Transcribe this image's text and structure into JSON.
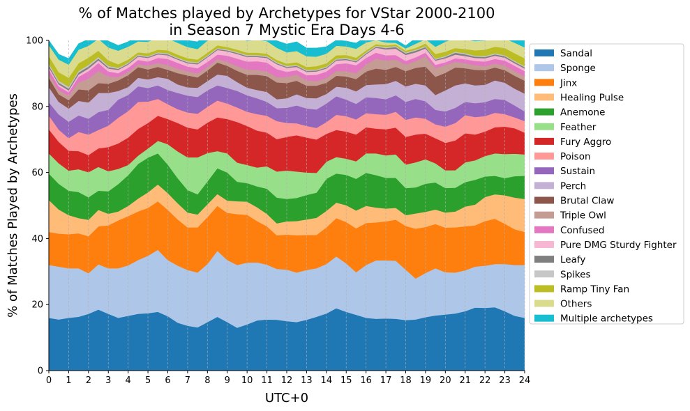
{
  "chart_data": {
    "type": "area",
    "stacked": true,
    "title_line1": "% of Matches played by Archetypes for VStar 2000-2100",
    "title_line2": "in Season 7 Mystic Era Days 4-6",
    "xlabel": "UTC+0",
    "ylabel": "% of Matches Played by Archetypes",
    "xlim": [
      0,
      24
    ],
    "ylim": [
      0,
      100
    ],
    "x_ticks": [
      0,
      1,
      2,
      3,
      4,
      5,
      6,
      7,
      8,
      9,
      10,
      11,
      12,
      13,
      14,
      15,
      16,
      17,
      18,
      19,
      20,
      21,
      22,
      23,
      24
    ],
    "y_ticks": [
      0,
      20,
      40,
      60,
      80,
      100
    ],
    "grid": "vertical dashed",
    "legend_position": "right, outside plot",
    "x": [
      0,
      0.5,
      1,
      1.5,
      2,
      2.5,
      3,
      3.5,
      4,
      4.5,
      5,
      5.5,
      6,
      6.5,
      7,
      7.5,
      8,
      8.5,
      9,
      9.5,
      10,
      10.5,
      11,
      11.5,
      12,
      12.5,
      13,
      13.5,
      14,
      14.5,
      15,
      15.5,
      16,
      16.5,
      17,
      17.5,
      18,
      18.5,
      19,
      19.5,
      20,
      20.5,
      21,
      21.5,
      22,
      22.5,
      23,
      23.5,
      24
    ],
    "series": [
      {
        "name": "Sandal",
        "color": "#1f77b4",
        "values": [
          16,
          15.5,
          16,
          16.3,
          17.2,
          18.5,
          17.2,
          16,
          16.6,
          17.2,
          17.4,
          17.8,
          16.5,
          14.5,
          13.6,
          13.1,
          14.7,
          16.3,
          14.7,
          13,
          14,
          15.2,
          15.5,
          15.4,
          15,
          14.7,
          15.4,
          16.3,
          17.3,
          18.9,
          17.8,
          16.9,
          16,
          15.7,
          15.8,
          15.7,
          15.3,
          15.5,
          16.2,
          16.7,
          17,
          17.3,
          18,
          19.1,
          19,
          19.2,
          18,
          16.6,
          16
        ]
      },
      {
        "name": "Sponge",
        "color": "#aec7e8",
        "values": [
          16,
          16,
          15,
          14.7,
          12.3,
          13.7,
          13.8,
          15,
          15.3,
          16.3,
          17.4,
          18.8,
          17,
          17.3,
          16.9,
          16.6,
          17.6,
          20,
          18.8,
          19,
          18.7,
          17.6,
          16.6,
          15.4,
          15.6,
          15,
          15.1,
          14.7,
          15,
          15.7,
          14.7,
          12.9,
          16,
          17.7,
          17.6,
          17.6,
          15.3,
          12.4,
          13.4,
          14.3,
          12.8,
          12.4,
          12.4,
          12.4,
          12.8,
          13.1,
          14.3,
          15.4,
          16
        ]
      },
      {
        "name": "Jinx",
        "color": "#ff7f0e",
        "values": [
          10,
          10,
          10.3,
          10.6,
          11.2,
          11.5,
          13,
          14.5,
          14.9,
          14.7,
          14.5,
          14.7,
          15.2,
          14,
          12.9,
          13.7,
          14.2,
          13.6,
          14.3,
          15.4,
          14.5,
          12.5,
          11.6,
          10.2,
          10.6,
          11.3,
          10.6,
          10.1,
          11.1,
          11.6,
          12.5,
          13.3,
          12.7,
          11.5,
          11.8,
          12.4,
          13.2,
          15.1,
          13.9,
          13.4,
          13.5,
          13.7,
          13.3,
          12.5,
          13.5,
          13.7,
          12.2,
          10.8,
          10
        ]
      },
      {
        "name": "Healing Pulse",
        "color": "#ffbb78",
        "values": [
          9.7,
          7.3,
          5.8,
          4.6,
          5,
          5,
          3.5,
          2.7,
          3.1,
          3.9,
          4.7,
          5.1,
          5.1,
          4.9,
          4.5,
          3.9,
          3.9,
          3.6,
          3.7,
          3.9,
          4,
          4.2,
          3.8,
          3.6,
          4,
          4.3,
          4.7,
          5.2,
          5,
          4.7,
          5.1,
          5.4,
          5.2,
          4.5,
          3.9,
          3.6,
          3.3,
          4.6,
          4.6,
          4.4,
          4.6,
          4.8,
          6,
          6.3,
          7.3,
          7.4,
          8.6,
          9.6,
          10
        ]
      },
      {
        "name": "Anemone",
        "color": "#2ca02c",
        "values": [
          8,
          7.8,
          7.4,
          7.9,
          6.8,
          5.8,
          6.8,
          8.3,
          9.3,
          10.5,
          10.5,
          9.4,
          8.6,
          7.6,
          6.8,
          6.1,
          6.9,
          7.8,
          8.5,
          5.9,
          5.6,
          6.3,
          7.6,
          7.8,
          6.8,
          7,
          7.4,
          7.6,
          9.7,
          8.8,
          9.2,
          9.6,
          10,
          9.8,
          9.3,
          9.1,
          8.2,
          7.9,
          8.5,
          8.2,
          7.4,
          7.2,
          7.4,
          7.5,
          6.2,
          5.6,
          5.2,
          6.5,
          7
        ]
      },
      {
        "name": "Feather",
        "color": "#98df8a",
        "values": [
          6.1,
          6.2,
          6.1,
          6.9,
          7.6,
          7.2,
          6.1,
          4.6,
          3.1,
          2.5,
          2.8,
          3.8,
          6.2,
          8.1,
          9.9,
          11.2,
          8.6,
          5.2,
          5.8,
          5.8,
          5.5,
          5.7,
          6.8,
          7.9,
          8.6,
          8,
          6.8,
          6,
          5.2,
          5,
          4.9,
          5.3,
          5.9,
          6.6,
          6.8,
          7.1,
          7.1,
          7.6,
          7.4,
          5.8,
          5.4,
          5.3,
          6,
          5.9,
          6.2,
          6.8,
          7.3,
          6.8,
          6.5
        ]
      },
      {
        "name": "Fury Aggro",
        "color": "#d62728",
        "values": [
          7.3,
          6.5,
          6,
          5.5,
          5.2,
          5.6,
          7.3,
          7.7,
          8.3,
          8.1,
          7.7,
          7.6,
          7.6,
          8.6,
          9,
          8.5,
          9.2,
          10.2,
          10.4,
          12.3,
          11.8,
          11.2,
          10.2,
          9.8,
          10.2,
          11,
          10.6,
          10.1,
          8.4,
          8.2,
          8.2,
          8.1,
          7.9,
          7.5,
          7.9,
          8.1,
          8.4,
          8.4,
          7.8,
          7.6,
          8.3,
          9,
          8.8,
          7.8,
          7.4,
          7.9,
          8.3,
          7.7,
          6.6
        ]
      },
      {
        "name": "Poison",
        "color": "#ff9896",
        "values": [
          4.2,
          3.7,
          3.8,
          5.8,
          6.2,
          5.6,
          6.5,
          7.8,
          8,
          8.2,
          6.5,
          5.1,
          4.5,
          4.2,
          4.6,
          4.7,
          4.8,
          5.1,
          4.7,
          4.4,
          4.3,
          5,
          5.1,
          5.5,
          4.2,
          3.6,
          3.5,
          3.5,
          3.6,
          4.6,
          4.7,
          4.6,
          4.3,
          4.4,
          4.4,
          4.8,
          5.2,
          5.2,
          4.5,
          4.2,
          4.9,
          5.3,
          5.5,
          5.3,
          4.7,
          4.4,
          3.8,
          3.3,
          3.5
        ]
      },
      {
        "name": "Sustain",
        "color": "#9467bd",
        "values": [
          4,
          4.6,
          5,
          5,
          4.8,
          5.4,
          4.8,
          5.5,
          4.9,
          4.7,
          4.1,
          4.1,
          4.3,
          4.9,
          5.1,
          5.1,
          5,
          4.6,
          4.7,
          5,
          5,
          4.8,
          4.2,
          3.9,
          4.6,
          5.4,
          5.3,
          5.6,
          5.6,
          5.6,
          5,
          4.7,
          4.8,
          4.9,
          4.7,
          5,
          5.4,
          5.6,
          5.3,
          4.4,
          4.6,
          4.6,
          4,
          4.2,
          4.2,
          4.2,
          4.3,
          3.6,
          2.9
        ]
      },
      {
        "name": "Perch",
        "color": "#c5b0d5",
        "values": [
          4.6,
          3.8,
          4,
          4.4,
          4.9,
          5.8,
          5.1,
          2.6,
          2.4,
          2.6,
          2.6,
          2.5,
          3.4,
          2.6,
          2.5,
          2.8,
          2.8,
          3.3,
          3.7,
          2.7,
          2.3,
          2.5,
          3,
          2.7,
          2.9,
          3.4,
          3.2,
          3.4,
          2.9,
          2.9,
          3.6,
          3.8,
          3.7,
          4.1,
          4.6,
          4.4,
          4.7,
          4.6,
          4.8,
          4.5,
          6.4,
          6.8,
          5.6,
          5.4,
          5.3,
          5.6,
          5.2,
          5.1,
          5.4
        ]
      },
      {
        "name": "Brutal Claw",
        "color": "#8c564b",
        "values": [
          2.8,
          2.3,
          2.5,
          3.5,
          3.7,
          3,
          2.8,
          3.2,
          3.6,
          3.2,
          3,
          3.1,
          2.7,
          3.4,
          3.6,
          3.1,
          3.2,
          3.6,
          3,
          3.4,
          3.9,
          4.6,
          4.8,
          5.1,
          4.6,
          4.1,
          3.7,
          3.8,
          3.4,
          3.3,
          3.4,
          3.7,
          4.1,
          4.8,
          4.3,
          4.2,
          4.6,
          4.8,
          5.7,
          5.5,
          5.3,
          5.4,
          4.6,
          4.7,
          4.4,
          3.9,
          3.8,
          3.9,
          3.9
        ]
      },
      {
        "name": "Triple Owl",
        "color": "#c49c94",
        "values": [
          1.1,
          1.2,
          1.4,
          2.1,
          3.5,
          3.7,
          2.1,
          1,
          0.9,
          0.9,
          1.2,
          1.2,
          1.4,
          1.4,
          1.3,
          1.2,
          1.1,
          1.1,
          1.2,
          1.4,
          1.6,
          1.5,
          1.4,
          1.6,
          1.8,
          1.9,
          1.6,
          1.4,
          1.4,
          1.5,
          1.6,
          1.8,
          2.1,
          3,
          2.8,
          2.2,
          1.9,
          2.1,
          3,
          2.6,
          2.3,
          1.7,
          1.5,
          1.4,
          1.2,
          1.2,
          1.4,
          1.4,
          1.3
        ]
      },
      {
        "name": "Confused",
        "color": "#e377c2",
        "values": [
          1.4,
          1.2,
          1,
          1.7,
          2.3,
          2.4,
          1.6,
          1.2,
          1.3,
          1.3,
          1.2,
          1.5,
          1.9,
          1.7,
          1.4,
          1.6,
          1.5,
          1.3,
          1.9,
          2.3,
          2.4,
          2.6,
          2.7,
          2.4,
          1.6,
          1.3,
          1.6,
          1.9,
          2,
          2,
          2.4,
          2.4,
          2,
          1.8,
          1.6,
          1.4,
          1.2,
          1.1,
          1.2,
          1,
          0.9,
          1.1,
          1.2,
          1.3,
          1.4,
          1.4,
          1.5,
          1.6,
          1.6
        ]
      },
      {
        "name": "Pure DMG Sturdy Fighter",
        "color": "#f7b6d2",
        "values": [
          0.7,
          0.6,
          0.6,
          0.7,
          0.8,
          0.8,
          0.9,
          1,
          1,
          1,
          1.1,
          1.1,
          1.1,
          1,
          1,
          1.2,
          1.4,
          1.4,
          1.3,
          1.4,
          1.4,
          1.3,
          1.4,
          1.5,
          1.2,
          1,
          1,
          1,
          0.9,
          1.1,
          1,
          0.9,
          1.1,
          1.5,
          1.8,
          1.9,
          1.8,
          1.5,
          1.3,
          1.3,
          1.2,
          1.1,
          1,
          0.9,
          1,
          1,
          0.9,
          0.8,
          0.8
        ]
      },
      {
        "name": "Leafy",
        "color": "#7f7f7f",
        "values": [
          0.5,
          0.5,
          0.5,
          0.6,
          0.6,
          0.5,
          0.4,
          0.3,
          0.3,
          0.3,
          0.3,
          0.3,
          0.3,
          0.3,
          0.3,
          0.3,
          0.3,
          0.3,
          0.3,
          0.3,
          0.3,
          0.3,
          0.3,
          0.3,
          0.3,
          0.3,
          0.3,
          0.3,
          0.3,
          0.3,
          0.3,
          0.3,
          0.3,
          0.3,
          0.4,
          0.5,
          0.5,
          0.5,
          0.4,
          0.3,
          0.4,
          0.6,
          0.5,
          0.4,
          0.4,
          0.4,
          0.4,
          0.4,
          0.4
        ]
      },
      {
        "name": "Spikes",
        "color": "#c7c7c7",
        "values": [
          0.6,
          0.6,
          0.6,
          0.5,
          0.5,
          0.5,
          0.4,
          0.3,
          0.3,
          0.3,
          0.3,
          0.3,
          0.3,
          0.3,
          0.3,
          0.3,
          0.3,
          0.3,
          0.3,
          0.3,
          0.3,
          0.3,
          0.3,
          0.3,
          0.3,
          0.3,
          0.3,
          0.3,
          0.3,
          0.3,
          0.3,
          0.3,
          0.3,
          0.3,
          0.3,
          0.3,
          0.3,
          0.3,
          0.3,
          0.3,
          0.3,
          0.3,
          0.3,
          0.3,
          0.3,
          0.3,
          0.3,
          0.3,
          0.3
        ]
      },
      {
        "name": "Ramp Tiny Fan",
        "color": "#bcbd22",
        "values": [
          2.3,
          2.6,
          2.7,
          2.3,
          2.2,
          1.9,
          1.7,
          1.1,
          0.9,
          0.7,
          0.8,
          0.8,
          0.9,
          0.9,
          0.9,
          0.8,
          0.8,
          0.8,
          0.7,
          0.7,
          0.7,
          0.7,
          0.7,
          0.7,
          0.7,
          0.8,
          0.9,
          1,
          1,
          1,
          0.9,
          0.8,
          0.6,
          0.5,
          0.5,
          0.5,
          0.5,
          0.5,
          0.8,
          1.4,
          1.3,
          1.1,
          1.3,
          1.6,
          1.9,
          2,
          2.2,
          2.3,
          2.4
        ]
      },
      {
        "name": "Others",
        "color": "#dbdb8d",
        "values": [
          3.3,
          3.8,
          4,
          4.1,
          3.6,
          3.6,
          3.9,
          4.1,
          3.9,
          3.3,
          3.5,
          3.8,
          3.6,
          3.6,
          3.4,
          3.2,
          3.7,
          4.1,
          3.8,
          3.5,
          3.6,
          3.9,
          3.8,
          3.7,
          3.4,
          3.4,
          3.2,
          2.9,
          2.9,
          2.9,
          2.6,
          2.7,
          2.4,
          1.2,
          0.9,
          0.5,
          0.7,
          1.3,
          1.3,
          2.2,
          3,
          3.1,
          2.9,
          2.8,
          2.8,
          2.9,
          2.9,
          3.2,
          3.3
        ]
      },
      {
        "name": "Multiple archetypes",
        "color": "#17becf",
        "values": [
          1.4,
          1.6,
          1.8,
          1.8,
          2,
          1.9,
          1.9,
          1.6,
          1.5,
          1.7,
          1.8,
          1.8,
          1.8,
          1.8,
          2,
          2.2,
          2.1,
          1.8,
          2.4,
          2.1,
          1.8,
          1.5,
          1.5,
          2.1,
          2.5,
          2.8,
          2.5,
          2.6,
          2.1,
          1.7,
          1.6,
          1.7,
          1.7,
          1.6,
          1.1,
          0.9,
          0.8,
          1.7,
          1.8,
          2.4,
          2.2,
          1.8,
          1.6,
          1.6,
          1.6,
          1.6,
          1.6,
          2.1,
          2.1
        ]
      }
    ]
  }
}
